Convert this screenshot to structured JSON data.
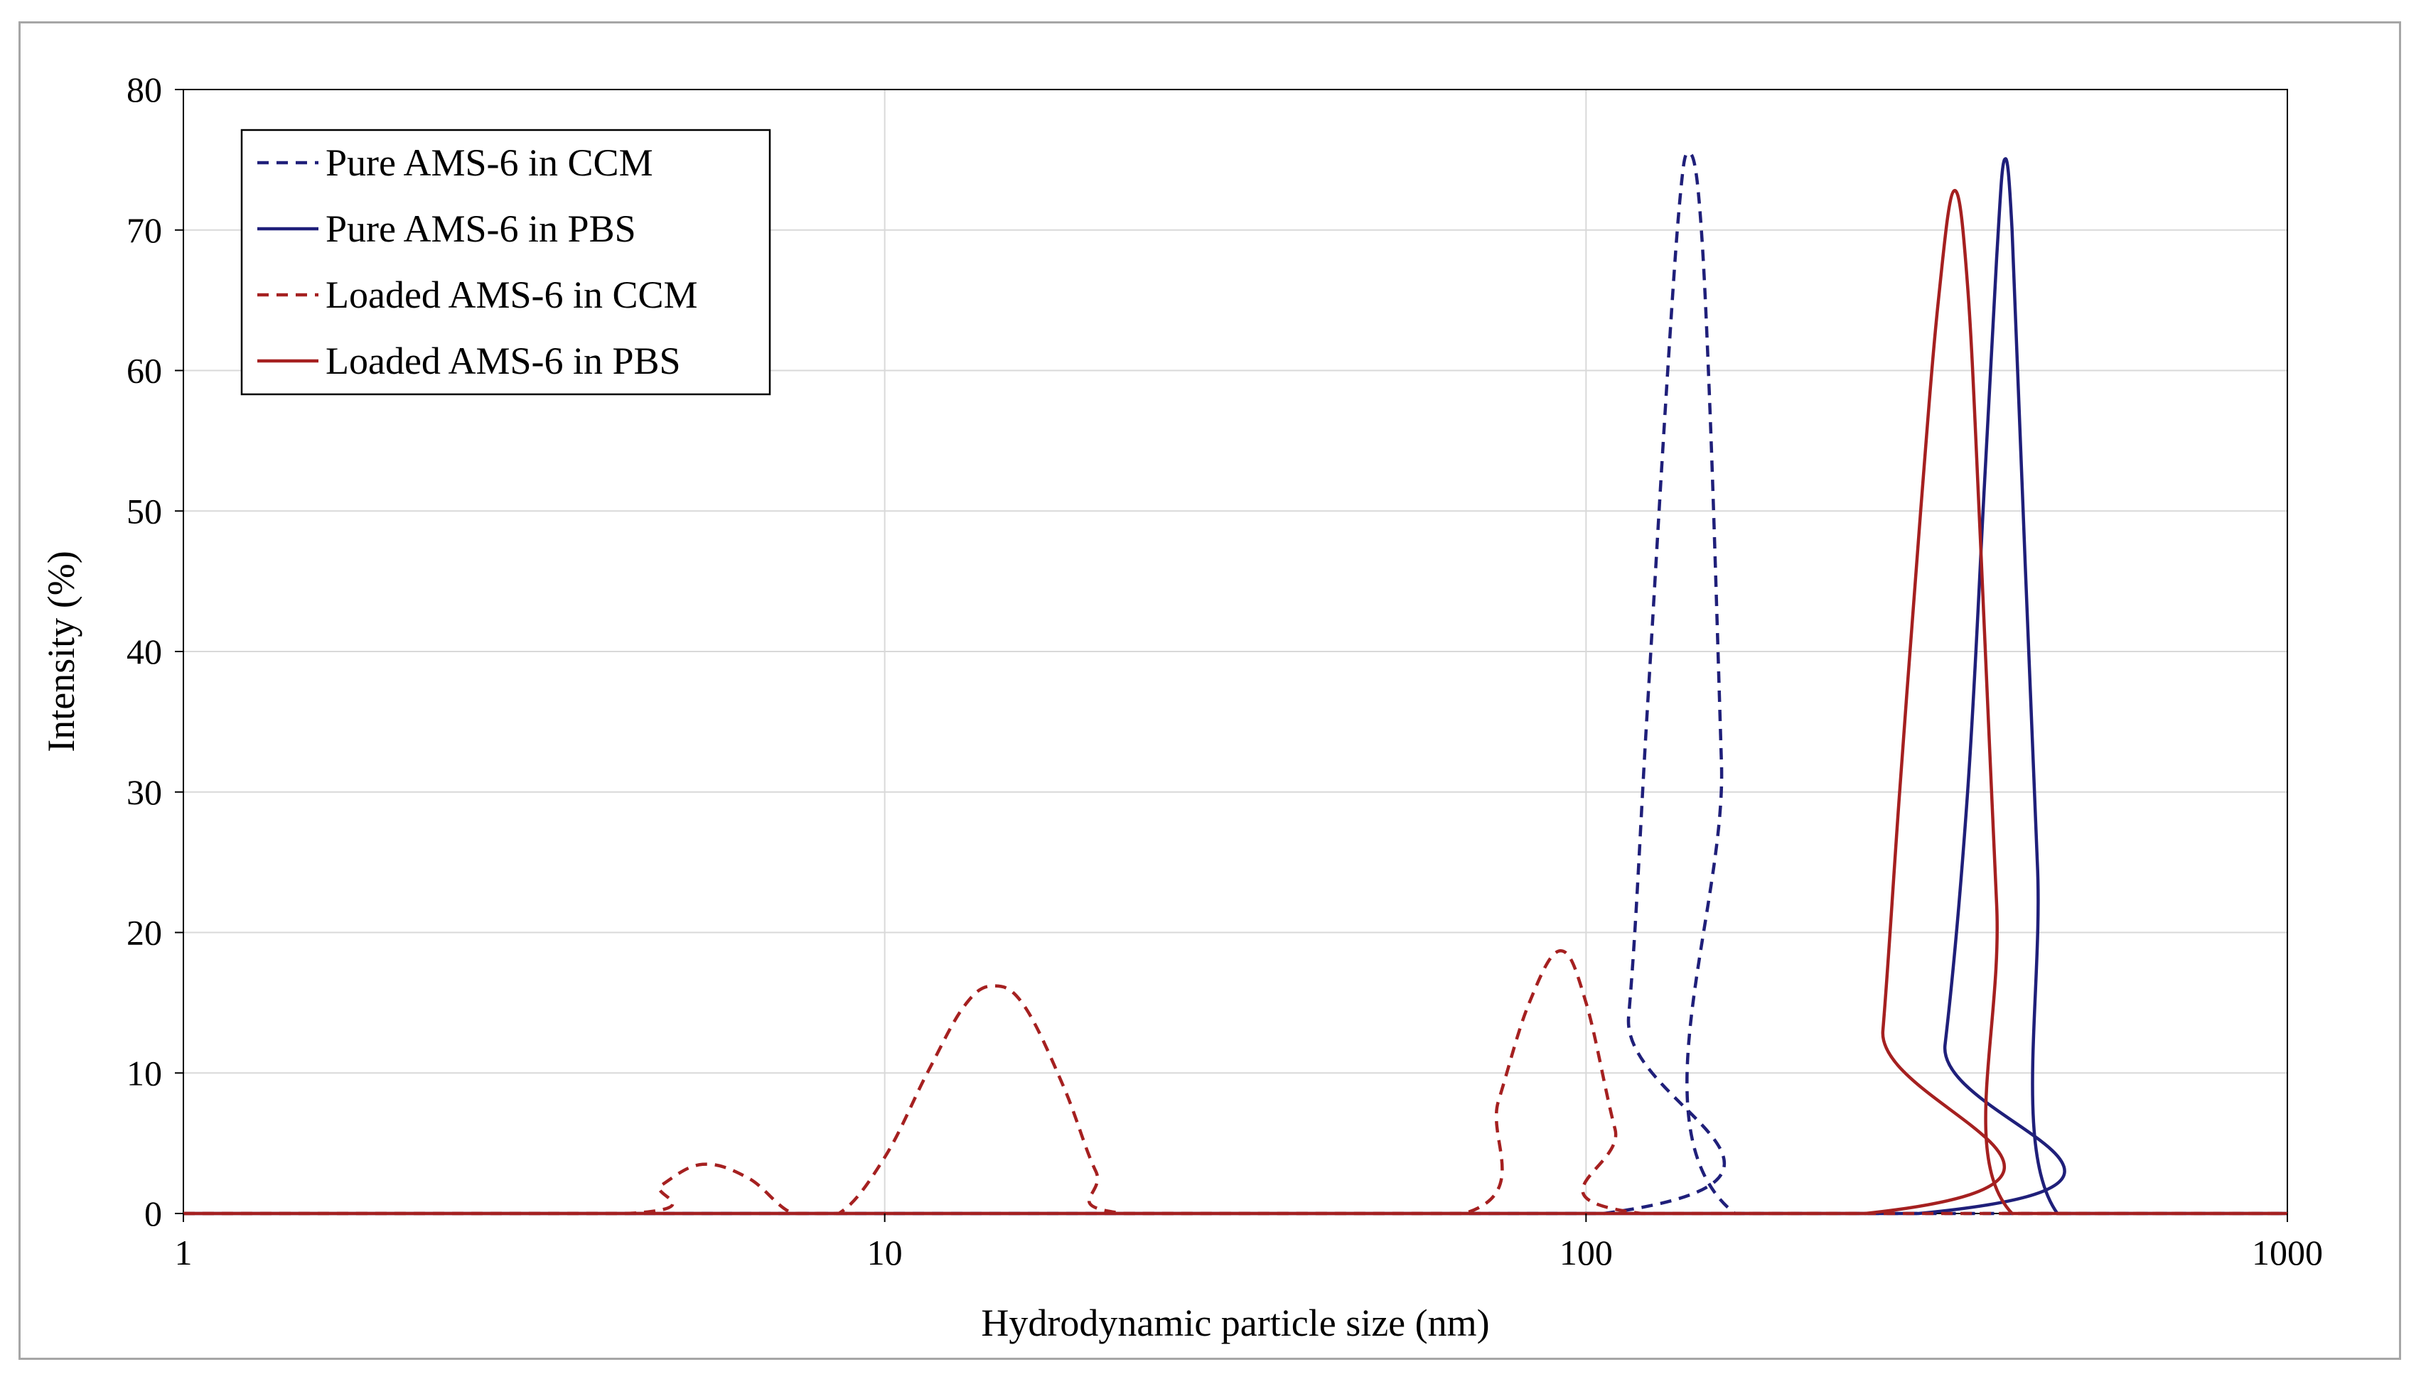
{
  "chart_data": {
    "type": "line",
    "title": "",
    "xlabel": "Hydrodynamic particle size (nm)",
    "ylabel": "Intensity (%)",
    "x_scale": "log",
    "xlim": [
      1,
      1000
    ],
    "ylim": [
      0,
      80
    ],
    "x_ticks": [
      1,
      10,
      100,
      1000
    ],
    "x_tick_labels": [
      "1",
      "10",
      "100",
      "1000"
    ],
    "y_ticks": [
      0,
      10,
      20,
      30,
      40,
      50,
      60,
      70,
      80
    ],
    "y_tick_labels": [
      "0",
      "10",
      "20",
      "30",
      "40",
      "50",
      "60",
      "70",
      "80"
    ],
    "grid": true,
    "legend_position": "top-left",
    "series": [
      {
        "name": "Pure AMS-6 in CCM",
        "color": "#1f1f7a",
        "dash": "dashed",
        "points": [
          [
            1,
            0
          ],
          [
            106,
            0
          ],
          [
            115,
            14
          ],
          [
            122,
            35
          ],
          [
            130,
            58
          ],
          [
            136,
            72
          ],
          [
            140,
            75.5
          ],
          [
            145,
            72
          ],
          [
            150,
            58
          ],
          [
            156,
            32
          ],
          [
            163,
            0
          ],
          [
            1000,
            0
          ]
        ]
      },
      {
        "name": "Pure AMS-6 in PBS",
        "color": "#1f1f7a",
        "dash": "solid",
        "points": [
          [
            1,
            0
          ],
          [
            298,
            0
          ],
          [
            325,
            12
          ],
          [
            350,
            30
          ],
          [
            370,
            52
          ],
          [
            385,
            68
          ],
          [
            395,
            75
          ],
          [
            405,
            70
          ],
          [
            420,
            50
          ],
          [
            440,
            25
          ],
          [
            470,
            0
          ],
          [
            1000,
            0
          ]
        ]
      },
      {
        "name": "Loaded AMS-6 in CCM",
        "color": "#a52020",
        "dash": "dashed",
        "points": [
          [
            1,
            0
          ],
          [
            4.3,
            0
          ],
          [
            4.8,
            2
          ],
          [
            5.5,
            3.5
          ],
          [
            6.4,
            2.5
          ],
          [
            7.4,
            0
          ],
          [
            8.6,
            0
          ],
          [
            10,
            4
          ],
          [
            11.5,
            10
          ],
          [
            13,
            14.8
          ],
          [
            14.3,
            16.2
          ],
          [
            15.8,
            14.8
          ],
          [
            18,
            9
          ],
          [
            20,
            3
          ],
          [
            22,
            0
          ],
          [
            67,
            0
          ],
          [
            75,
            8
          ],
          [
            83,
            15
          ],
          [
            92,
            18.7
          ],
          [
            100,
            15
          ],
          [
            110,
            6
          ],
          [
            120,
            0
          ],
          [
            1000,
            0
          ]
        ]
      },
      {
        "name": "Loaded AMS-6 in PBS",
        "color": "#a52020",
        "dash": "solid",
        "points": [
          [
            1,
            0
          ],
          [
            250,
            0
          ],
          [
            265,
            13
          ],
          [
            280,
            30
          ],
          [
            300,
            50
          ],
          [
            318,
            65
          ],
          [
            335,
            72.8
          ],
          [
            350,
            66
          ],
          [
            365,
            48
          ],
          [
            385,
            22
          ],
          [
            405,
            0
          ],
          [
            1000,
            0
          ]
        ]
      }
    ]
  }
}
